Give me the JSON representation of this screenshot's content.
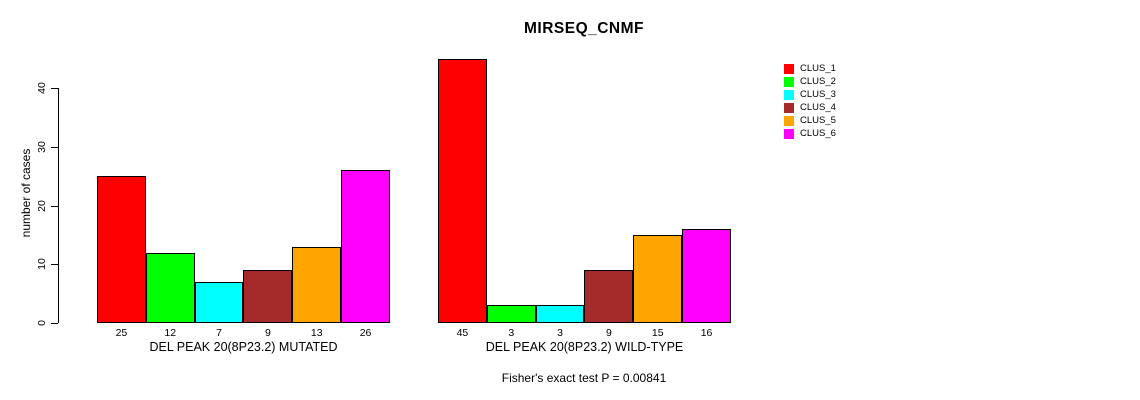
{
  "title": "MIRSEQ_CNMF",
  "y_axis": {
    "label": "number of cases",
    "tick_values": [
      0,
      10,
      20,
      30,
      40
    ]
  },
  "legend": {
    "items": [
      {
        "label": "CLUS_1",
        "color": "#FF0000"
      },
      {
        "label": "CLUS_2",
        "color": "#00FF00"
      },
      {
        "label": "CLUS_3",
        "color": "#00FFFF"
      },
      {
        "label": "CLUS_4",
        "color": "#A52A2A"
      },
      {
        "label": "CLUS_5",
        "color": "#FFA500"
      },
      {
        "label": "CLUS_6",
        "color": "#FF00FF"
      }
    ]
  },
  "footer": {
    "fisher_text": "Fisher's exact test P = 0.00841"
  },
  "chart_data": {
    "type": "bar",
    "title": "MIRSEQ_CNMF",
    "ylabel": "number of cases",
    "ylim": [
      0,
      45
    ],
    "yticks": [
      0,
      10,
      20,
      30,
      40
    ],
    "grid": false,
    "legend_position": "right",
    "series_labels": [
      "CLUS_1",
      "CLUS_2",
      "CLUS_3",
      "CLUS_4",
      "CLUS_5",
      "CLUS_6"
    ],
    "colors": [
      "#FF0000",
      "#00FF00",
      "#00FFFF",
      "#A52A2A",
      "#FFA500",
      "#FF00FF"
    ],
    "panels": [
      {
        "xlabel": "DEL PEAK 20(8P23.2) MUTATED",
        "values": [
          25,
          12,
          7,
          9,
          13,
          26
        ]
      },
      {
        "xlabel": "DEL PEAK 20(8P23.2) WILD-TYPE",
        "values": [
          45,
          3,
          3,
          9,
          15,
          16
        ]
      }
    ],
    "annotation": "Fisher's exact test P = 0.00841"
  }
}
